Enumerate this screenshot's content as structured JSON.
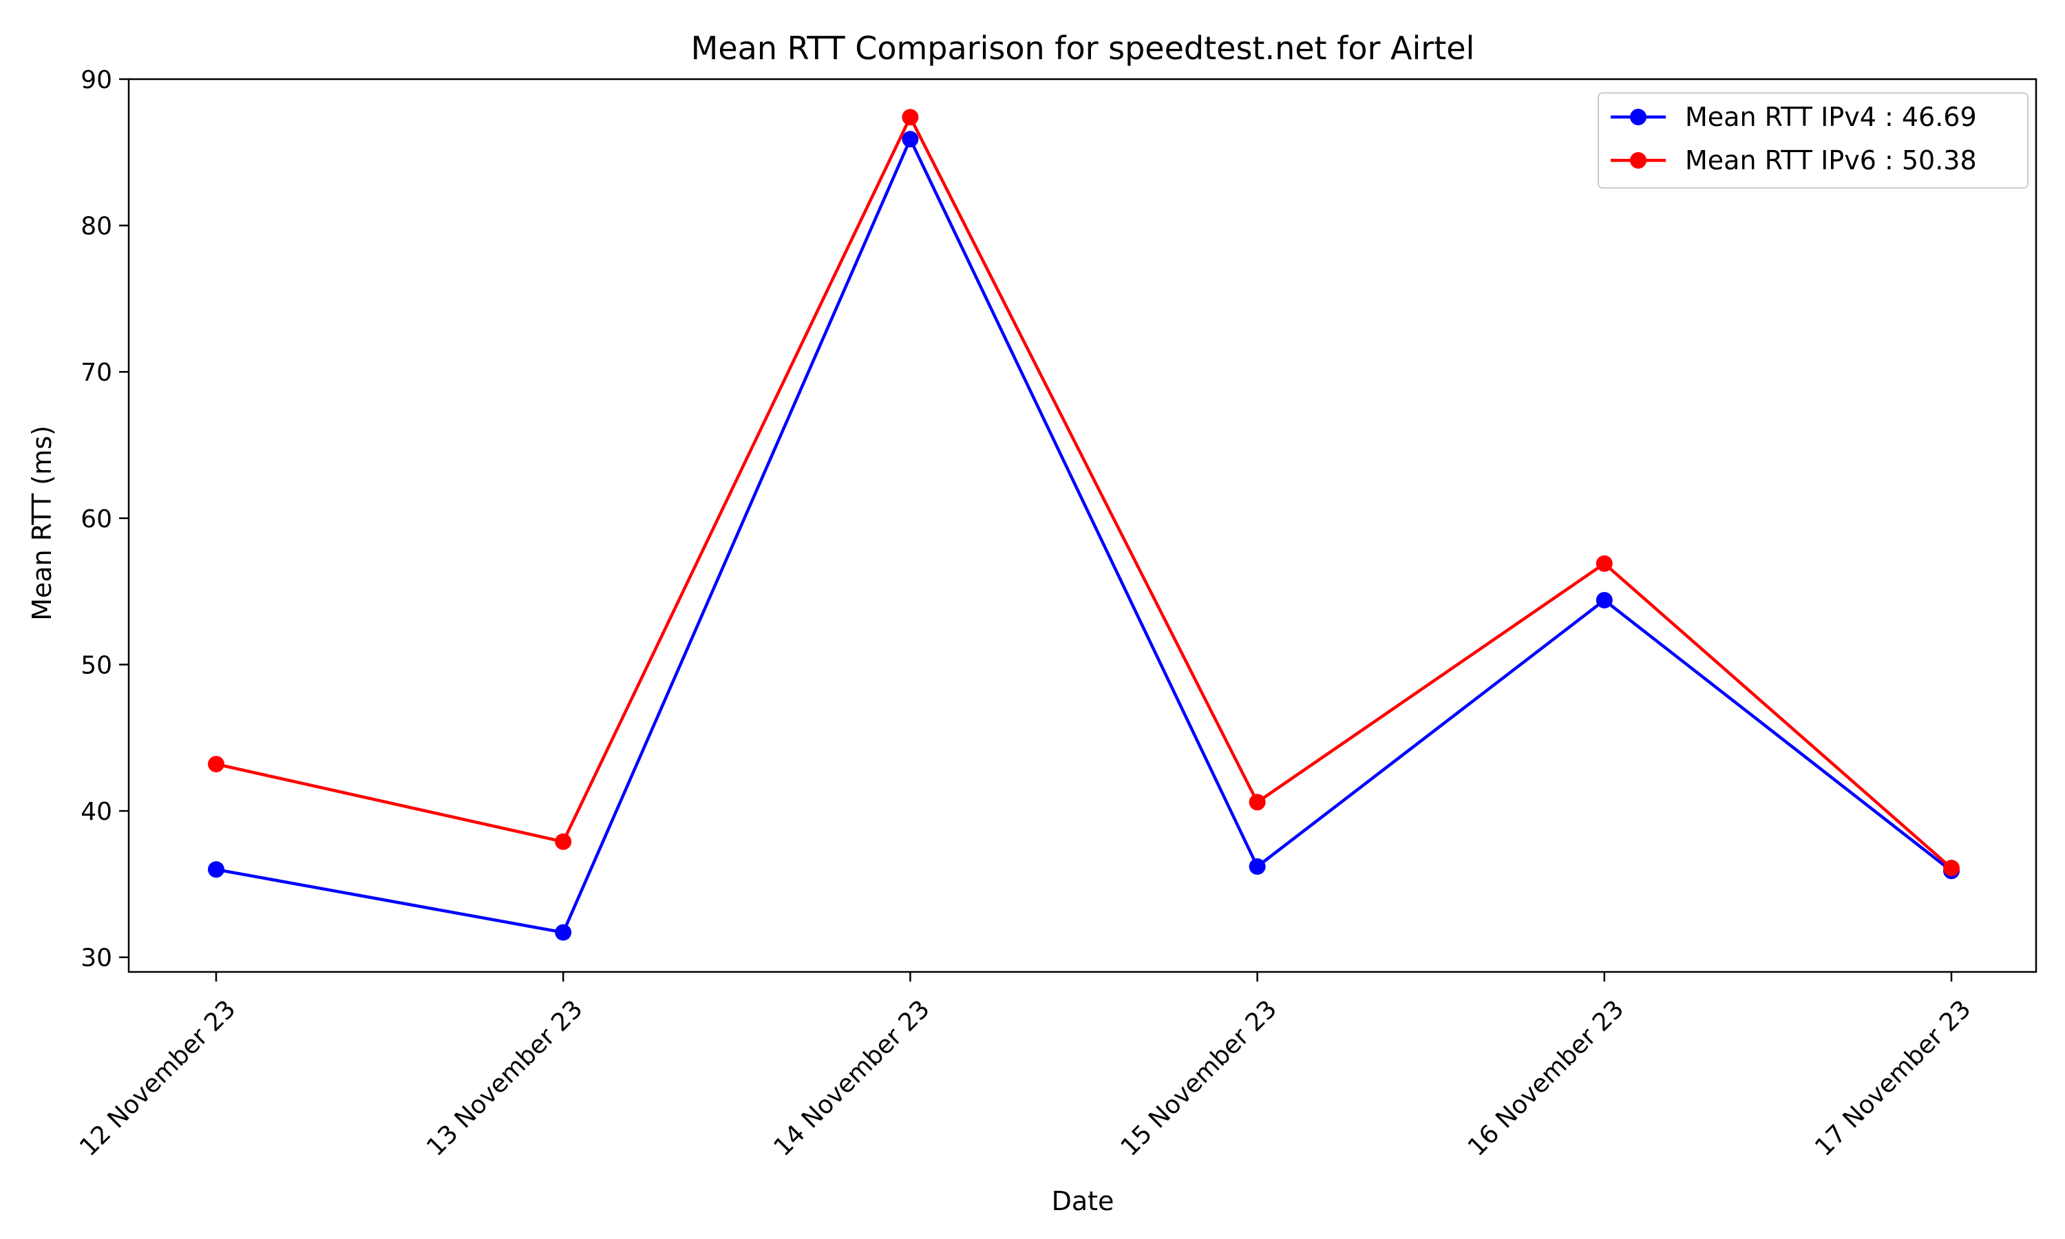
{
  "chart_data": {
    "type": "line",
    "title": "Mean RTT Comparison for speedtest.net for Airtel",
    "xlabel": "Date",
    "ylabel": "Mean RTT (ms)",
    "categories": [
      "12 November 23",
      "13 November 23",
      "14 November 23",
      "15 November 23",
      "16 November 23",
      "17 November 23"
    ],
    "ylim": [
      29,
      90
    ],
    "yticks": [
      30,
      40,
      50,
      60,
      70,
      80,
      90
    ],
    "grid": false,
    "legend_position": "top-right",
    "series": [
      {
        "name": "Mean RTT IPv4 : 46.69",
        "color": "#0000ff",
        "marker": "circle",
        "values": [
          36.0,
          31.7,
          85.9,
          36.2,
          54.4,
          35.9
        ]
      },
      {
        "name": "Mean RTT IPv6 : 50.38",
        "color": "#ff0000",
        "marker": "circle",
        "values": [
          43.2,
          37.9,
          87.4,
          40.6,
          56.9,
          36.1
        ]
      }
    ]
  }
}
